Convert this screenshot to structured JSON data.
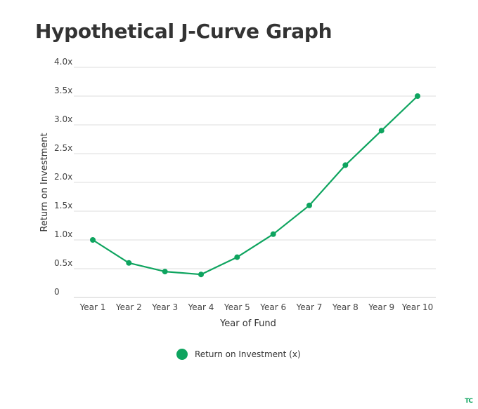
{
  "colors": {
    "series": "#0ea45f",
    "grid": "#dddddd",
    "text": "#333333"
  },
  "brand": "TC",
  "chart_data": {
    "type": "line",
    "title": "Hypothetical J-Curve Graph",
    "xlabel": "Year of Fund",
    "ylabel": "Return on Investment",
    "categories": [
      "Year 1",
      "Year 2",
      "Year 3",
      "Year 4",
      "Year 5",
      "Year 6",
      "Year 7",
      "Year 8",
      "Year 9",
      "Year 10"
    ],
    "yticks": [
      "0",
      "0.5x",
      "1.0x",
      "1.5x",
      "2.0x",
      "2.5x",
      "3.0x",
      "3.5x",
      "4.0x"
    ],
    "ylim": [
      0,
      4
    ],
    "grid": true,
    "legend_position": "bottom-center",
    "series": [
      {
        "name": "Return on Investment (x)",
        "values": [
          1.0,
          0.6,
          0.45,
          0.4,
          0.7,
          1.1,
          1.6,
          2.3,
          2.9,
          3.5
        ]
      }
    ]
  }
}
